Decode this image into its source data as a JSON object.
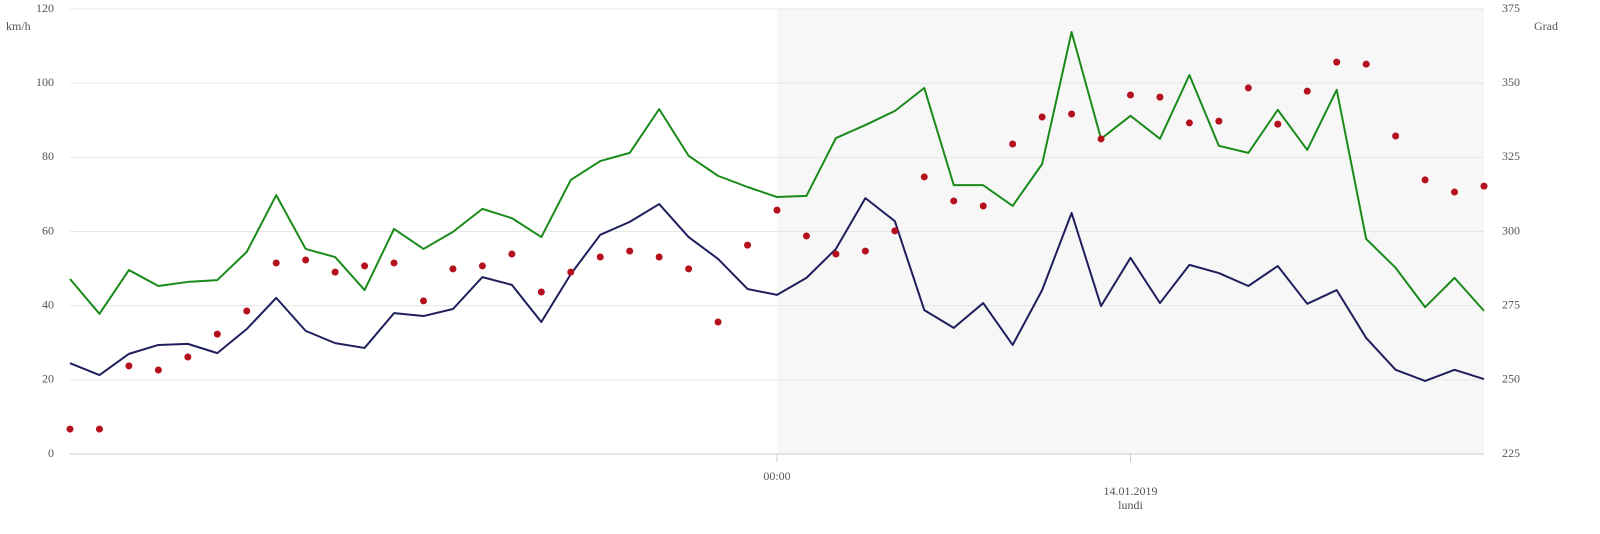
{
  "chart_data": {
    "type": "line",
    "y_axis_label": "km/h",
    "y2_axis_label": "Grad",
    "categories": [
      null,
      null,
      null,
      null,
      null,
      null,
      null,
      null,
      null,
      null,
      null,
      null,
      null,
      null,
      null,
      null,
      null,
      null,
      null,
      null,
      null,
      null,
      null,
      null,
      "00:00",
      null,
      null,
      null,
      null,
      null,
      null,
      null,
      null,
      null,
      null,
      null,
      "14.01.2019",
      null,
      null,
      null,
      null,
      null,
      null,
      null,
      null,
      null,
      null,
      null,
      null
    ],
    "weekday_labels": [
      null,
      null,
      null,
      null,
      null,
      null,
      null,
      null,
      null,
      null,
      null,
      null,
      null,
      null,
      null,
      null,
      null,
      null,
      null,
      null,
      null,
      null,
      null,
      null,
      null,
      null,
      null,
      null,
      null,
      null,
      null,
      null,
      null,
      null,
      null,
      null,
      "lundi",
      null,
      null,
      null,
      null,
      null,
      null,
      null,
      null,
      null,
      null,
      null,
      null
    ],
    "series": [
      {
        "color": "#1a8a1a",
        "values": [
          47.2,
          37.8,
          49.6,
          45.3,
          46.4,
          46.9,
          54.5,
          69.8,
          55.3,
          53.1,
          44.2,
          60.7,
          55.3,
          59.9,
          66.1,
          63.6,
          58.5,
          73.9,
          79.0,
          81.2,
          93.0,
          80.4,
          75.0,
          72.0,
          69.3,
          69.6,
          85.2,
          88.7,
          92.5,
          98.7,
          72.5,
          72.5,
          66.9,
          78.2,
          113.8,
          85.0,
          91.2,
          85.0,
          102.2,
          83.1,
          81.2,
          92.8,
          82.0,
          98.2,
          58.0,
          50.2,
          39.6,
          47.5,
          38.6
        ]
      },
      {
        "color": "#1f1f5e",
        "values": [
          24.5,
          21.3,
          27.0,
          29.4,
          29.7,
          27.2,
          33.7,
          42.1,
          33.2,
          29.9,
          28.6,
          38.0,
          37.2,
          39.1,
          47.7,
          45.6,
          35.6,
          48.5,
          59.1,
          62.6,
          67.4,
          58.5,
          52.6,
          44.5,
          42.9,
          47.5,
          55.3,
          69.0,
          62.8,
          38.8,
          34.0,
          40.7,
          29.4,
          44.2,
          65.0,
          39.9,
          52.9,
          40.7,
          51.0,
          48.8,
          45.3,
          50.7,
          40.5,
          44.2,
          31.3,
          22.7,
          19.7,
          22.7,
          20.2
        ]
      },
      {
        "type": "scatter",
        "axis": "y2",
        "color": "#b5101e",
        "values": [
          233.4,
          233.4,
          254.7,
          253.3,
          257.7,
          265.4,
          273.2,
          289.4,
          290.4,
          286.3,
          288.4,
          289.4,
          276.6,
          287.4,
          288.4,
          292.4,
          279.6,
          286.3,
          291.4,
          293.4,
          291.4,
          287.4,
          269.5,
          295.4,
          307.2,
          298.5,
          292.4,
          293.4,
          300.2,
          318.4,
          310.3,
          308.6,
          329.5,
          338.6,
          339.6,
          331.2,
          346.0,
          345.3,
          336.6,
          337.2,
          348.4,
          336.2,
          347.3,
          357.1,
          356.4,
          332.2,
          317.4,
          313.3,
          315.3
        ]
      }
    ],
    "ylim": [
      0,
      120
    ],
    "yticks": [
      0,
      20,
      40,
      60,
      80,
      100,
      120
    ],
    "y2lim": [
      225,
      375
    ],
    "y2ticks": [
      225,
      250,
      275,
      300,
      325,
      350,
      375
    ],
    "grid": true
  }
}
